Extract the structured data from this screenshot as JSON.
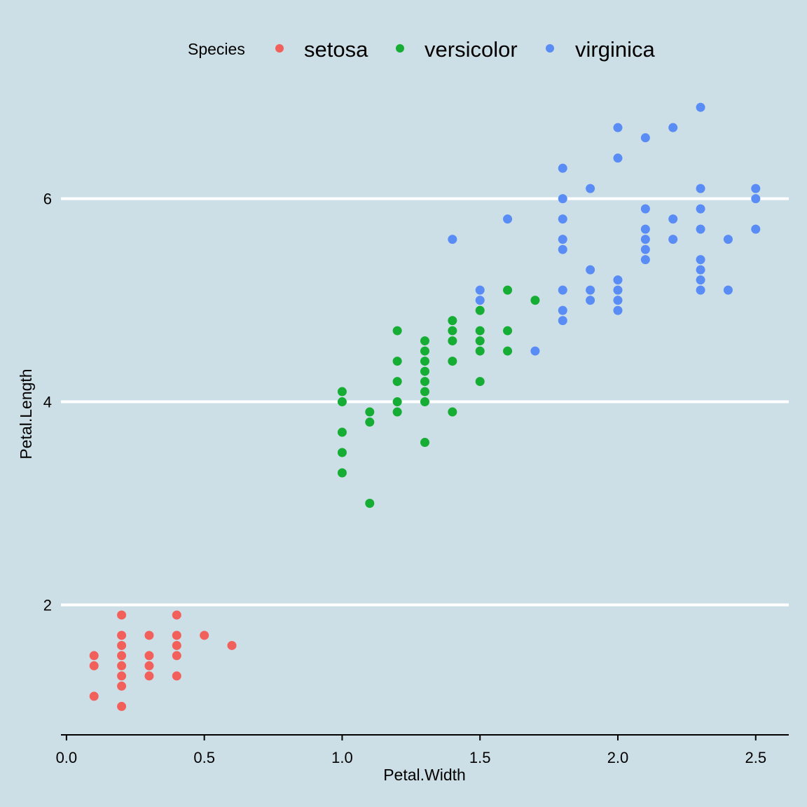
{
  "chart_data": {
    "type": "scatter",
    "xlabel": "Petal.Width",
    "ylabel": "Petal.Length",
    "xlim": [
      -0.02,
      2.62
    ],
    "ylim": [
      0.72,
      7.06
    ],
    "x_ticks": [
      0,
      0.5,
      1,
      1.5,
      2,
      2.5
    ],
    "x_tick_labels": [
      "0.0",
      "0.5",
      "1.0",
      "1.5",
      "2.0",
      "2.5"
    ],
    "y_ticks": [
      2,
      4,
      6
    ],
    "y_tick_labels": [
      "2",
      "4",
      "6"
    ],
    "grid": "horizontal major lines (white)",
    "legend": {
      "title": "Species",
      "position": "top"
    },
    "series": [
      {
        "name": "setosa",
        "color": "#f2605b",
        "points": [
          [
            0.1,
            1.5
          ],
          [
            0.1,
            1.4
          ],
          [
            0.1,
            1.1
          ],
          [
            0.2,
            1.9
          ],
          [
            0.2,
            1.7
          ],
          [
            0.2,
            1.6
          ],
          [
            0.2,
            1.5
          ],
          [
            0.2,
            1.4
          ],
          [
            0.2,
            1.3
          ],
          [
            0.2,
            1.2
          ],
          [
            0.2,
            1.0
          ],
          [
            0.3,
            1.7
          ],
          [
            0.3,
            1.5
          ],
          [
            0.3,
            1.4
          ],
          [
            0.3,
            1.3
          ],
          [
            0.4,
            1.9
          ],
          [
            0.4,
            1.7
          ],
          [
            0.4,
            1.6
          ],
          [
            0.4,
            1.5
          ],
          [
            0.4,
            1.3
          ],
          [
            0.5,
            1.7
          ],
          [
            0.6,
            1.6
          ]
        ]
      },
      {
        "name": "versicolor",
        "color": "#16ad34",
        "points": [
          [
            1.0,
            4.1
          ],
          [
            1.0,
            4.0
          ],
          [
            1.0,
            3.7
          ],
          [
            1.0,
            3.5
          ],
          [
            1.0,
            3.3
          ],
          [
            1.1,
            3.9
          ],
          [
            1.1,
            3.8
          ],
          [
            1.1,
            3.0
          ],
          [
            1.2,
            4.7
          ],
          [
            1.2,
            4.4
          ],
          [
            1.2,
            4.2
          ],
          [
            1.2,
            4.0
          ],
          [
            1.2,
            3.9
          ],
          [
            1.3,
            4.6
          ],
          [
            1.3,
            4.5
          ],
          [
            1.3,
            4.4
          ],
          [
            1.3,
            4.3
          ],
          [
            1.3,
            4.2
          ],
          [
            1.3,
            4.1
          ],
          [
            1.3,
            4.0
          ],
          [
            1.3,
            3.6
          ],
          [
            1.4,
            4.8
          ],
          [
            1.4,
            4.7
          ],
          [
            1.4,
            4.6
          ],
          [
            1.4,
            4.4
          ],
          [
            1.4,
            3.9
          ],
          [
            1.5,
            4.9
          ],
          [
            1.5,
            4.7
          ],
          [
            1.5,
            4.6
          ],
          [
            1.5,
            4.5
          ],
          [
            1.5,
            4.2
          ],
          [
            1.6,
            5.1
          ],
          [
            1.6,
            4.7
          ],
          [
            1.6,
            4.5
          ],
          [
            1.7,
            5.0
          ]
        ]
      },
      {
        "name": "virginica",
        "color": "#5a8cf5",
        "points": [
          [
            1.4,
            5.6
          ],
          [
            1.5,
            5.1
          ],
          [
            1.5,
            5.0
          ],
          [
            1.6,
            5.8
          ],
          [
            1.7,
            4.5
          ],
          [
            1.8,
            6.3
          ],
          [
            1.8,
            6.0
          ],
          [
            1.8,
            5.8
          ],
          [
            1.8,
            5.6
          ],
          [
            1.8,
            5.5
          ],
          [
            1.8,
            5.1
          ],
          [
            1.8,
            4.9
          ],
          [
            1.8,
            4.8
          ],
          [
            1.9,
            6.1
          ],
          [
            1.9,
            5.3
          ],
          [
            1.9,
            5.1
          ],
          [
            1.9,
            5.0
          ],
          [
            2.0,
            6.7
          ],
          [
            2.0,
            6.4
          ],
          [
            2.0,
            5.2
          ],
          [
            2.0,
            5.1
          ],
          [
            2.0,
            5.0
          ],
          [
            2.0,
            4.9
          ],
          [
            2.1,
            6.6
          ],
          [
            2.1,
            5.9
          ],
          [
            2.1,
            5.7
          ],
          [
            2.1,
            5.6
          ],
          [
            2.1,
            5.5
          ],
          [
            2.1,
            5.4
          ],
          [
            2.2,
            6.7
          ],
          [
            2.2,
            5.8
          ],
          [
            2.2,
            5.6
          ],
          [
            2.3,
            6.9
          ],
          [
            2.3,
            6.1
          ],
          [
            2.3,
            5.9
          ],
          [
            2.3,
            5.7
          ],
          [
            2.3,
            5.4
          ],
          [
            2.3,
            5.3
          ],
          [
            2.3,
            5.2
          ],
          [
            2.3,
            5.1
          ],
          [
            2.4,
            5.6
          ],
          [
            2.4,
            5.1
          ],
          [
            2.5,
            6.1
          ],
          [
            2.5,
            6.0
          ],
          [
            2.5,
            5.7
          ]
        ]
      }
    ]
  }
}
